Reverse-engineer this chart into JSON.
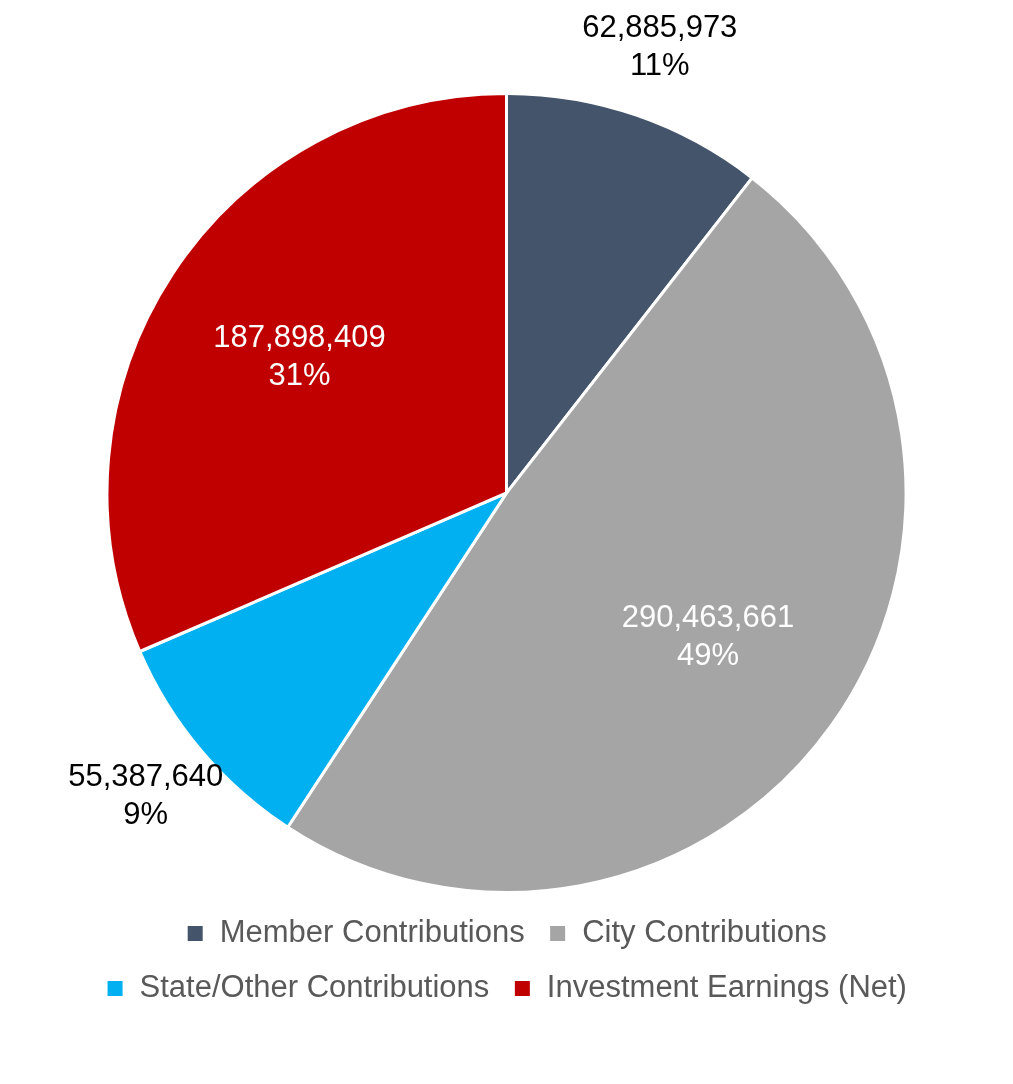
{
  "chart_data": {
    "type": "pie",
    "categories": [
      "Member Contributions",
      "City Contributions",
      "State/Other Contributions",
      "Investment Earnings (Net)"
    ],
    "values": [
      62885973,
      290463661,
      55387640,
      187898409
    ],
    "colors": [
      "#44546a",
      "#a5a5a5",
      "#00b0f0",
      "#c00000"
    ],
    "value_labels": [
      "62,885,973\n11%",
      "290,463,661\n49%",
      "55,387,640\n9%",
      "187,898,409\n31%"
    ],
    "legend": "bottom"
  }
}
